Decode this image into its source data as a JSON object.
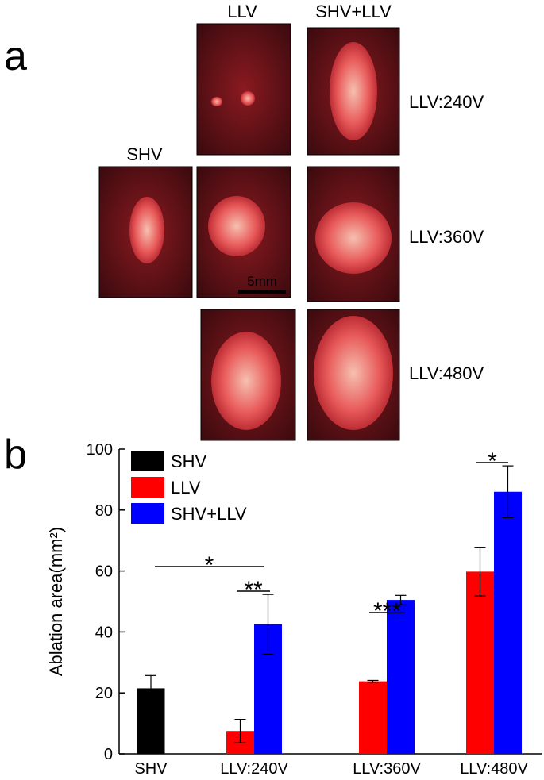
{
  "panel_a": {
    "label": "a",
    "columns": [
      "LLV",
      "SHV+LLV"
    ],
    "control": "SHV",
    "rows": [
      "LLV:240V",
      "LLV:360V",
      "LLV:480V"
    ],
    "scale_bar": "5mm"
  },
  "chart_data": {
    "type": "bar",
    "panel_label": "b",
    "y_label": "Ablation area(mm²)",
    "categories": [
      "SHV",
      "LLV:240V",
      "LLV:360V",
      "LLV:480V"
    ],
    "series": [
      {
        "name": "SHV",
        "color": "#000000",
        "values": [
          21.5,
          null,
          null,
          null
        ],
        "errors": [
          4.2,
          null,
          null,
          null
        ]
      },
      {
        "name": "LLV",
        "color": "#ff0000",
        "values": [
          null,
          7.5,
          23.8,
          59.8
        ],
        "errors": [
          null,
          3.8,
          0.3,
          8
        ]
      },
      {
        "name": "SHV+LLV",
        "color": "#0000ff",
        "values": [
          null,
          42.5,
          50.5,
          86
        ],
        "errors": [
          null,
          9.8,
          1.5,
          8.5
        ]
      }
    ],
    "ylim": [
      0,
      100
    ],
    "yticks": [
      0,
      20,
      40,
      60,
      80,
      100
    ],
    "legend": "upper left",
    "annotations": [
      "*",
      "**",
      "***",
      "*"
    ]
  }
}
